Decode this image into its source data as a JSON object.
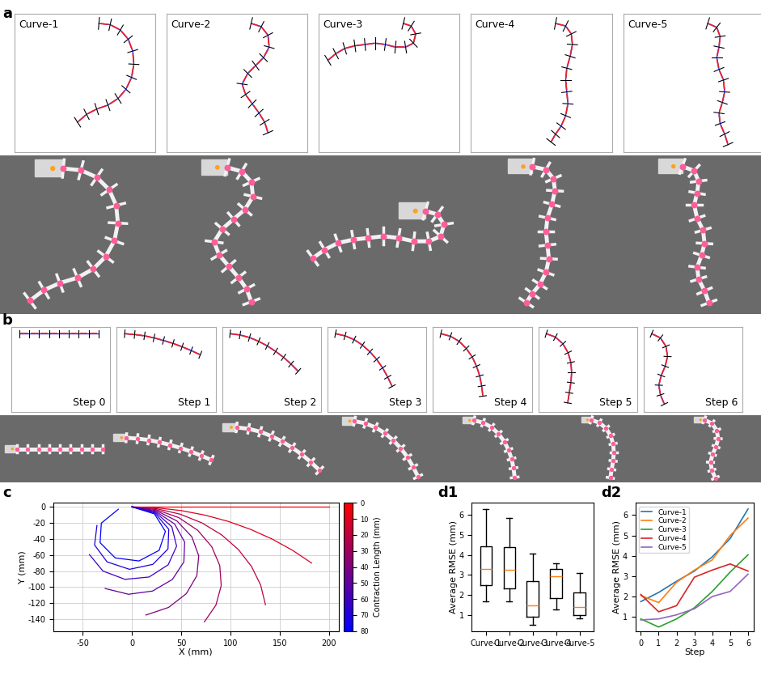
{
  "chart_data": [
    {
      "panel": "a",
      "type": "line",
      "xlim": [
        -150,
        100
      ],
      "ylim": [
        -195,
        15
      ],
      "tick_labels": false,
      "series": [
        {
          "name": "Curve-1",
          "x": [
            0,
            20,
            38,
            52,
            60,
            62,
            58,
            48,
            34,
            16,
            -4,
            -22,
            -38
          ],
          "y": [
            0,
            -2,
            -10,
            -24,
            -42,
            -62,
            -82,
            -100,
            -114,
            -124,
            -130,
            -138,
            -150
          ]
        },
        {
          "name": "Curve-2",
          "x": [
            0,
            18,
            30,
            32,
            22,
            8,
            -6,
            -16,
            -10,
            2,
            14,
            24,
            30
          ],
          "y": [
            0,
            -5,
            -18,
            -36,
            -52,
            -64,
            -76,
            -92,
            -108,
            -122,
            -136,
            -150,
            -166
          ]
        },
        {
          "name": "Curve-3",
          "x": [
            0,
            14,
            22,
            18,
            4,
            -14,
            -32,
            -50,
            -68,
            -86,
            -104,
            -120,
            -134
          ],
          "y": [
            0,
            -4,
            -16,
            -30,
            -36,
            -36,
            -32,
            -30,
            -32,
            -34,
            -38,
            -46,
            -56
          ]
        },
        {
          "name": "Curve-4",
          "x": [
            0,
            18,
            28,
            30,
            26,
            20,
            18,
            20,
            22,
            18,
            10,
            0,
            -8
          ],
          "y": [
            0,
            -4,
            -16,
            -32,
            -50,
            -68,
            -86,
            -104,
            -122,
            -140,
            -156,
            -168,
            -180
          ]
        },
        {
          "name": "Curve-5",
          "x": [
            0,
            16,
            22,
            20,
            16,
            20,
            28,
            30,
            26,
            20,
            22,
            30,
            36
          ],
          "y": [
            0,
            -6,
            -20,
            -36,
            -52,
            -70,
            -86,
            -104,
            -120,
            -136,
            -152,
            -168,
            -184
          ]
        }
      ]
    },
    {
      "panel": "b",
      "type": "line",
      "xlim": [
        -20,
        230
      ],
      "ylim": [
        -185,
        15
      ],
      "tick_labels": false,
      "series": [
        {
          "name": "Step 0",
          "x": [
            0,
            25,
            50,
            75,
            100,
            125,
            150,
            175,
            200
          ],
          "y": [
            0,
            0,
            0,
            0,
            0,
            0,
            0,
            0,
            0
          ]
        },
        {
          "name": "Step 1",
          "x": [
            0,
            25,
            50,
            74,
            98,
            122,
            145,
            168,
            191
          ],
          "y": [
            0,
            -2,
            -5,
            -10,
            -16,
            -23,
            -31,
            -40,
            -50
          ]
        },
        {
          "name": "Step 2",
          "x": [
            0,
            25,
            49,
            72,
            94,
            115,
            135,
            154,
            172
          ],
          "y": [
            0,
            -3,
            -9,
            -18,
            -29,
            -42,
            -56,
            -72,
            -89
          ]
        },
        {
          "name": "Step 3",
          "x": [
            0,
            24,
            47,
            68,
            87,
            104,
            119,
            132,
            143
          ],
          "y": [
            0,
            -5,
            -14,
            -27,
            -43,
            -61,
            -81,
            -103,
            -125
          ]
        },
        {
          "name": "Step 4",
          "x": [
            0,
            24,
            46,
            64,
            79,
            90,
            98,
            103,
            106
          ],
          "y": [
            0,
            -6,
            -18,
            -35,
            -55,
            -77,
            -100,
            -124,
            -148
          ]
        },
        {
          "name": "Step 5",
          "x": [
            0,
            23,
            42,
            55,
            62,
            64,
            62,
            58,
            54
          ],
          "y": [
            0,
            -8,
            -24,
            -45,
            -68,
            -92,
            -116,
            -140,
            -164
          ]
        },
        {
          "name": "Step 6",
          "x": [
            0,
            22,
            36,
            40,
            34,
            24,
            18,
            22,
            32
          ],
          "y": [
            0,
            -10,
            -30,
            -54,
            -77,
            -99,
            -122,
            -145,
            -167
          ]
        }
      ]
    },
    {
      "panel": "c",
      "type": "line",
      "xlabel": "X (mm)",
      "ylabel": "Y (mm)",
      "xlim": [
        -80,
        210
      ],
      "xticks": [
        -50,
        0,
        50,
        100,
        150,
        200
      ],
      "ylim": [
        -155,
        5
      ],
      "yticks": [
        -140,
        -120,
        -100,
        -80,
        -60,
        -40,
        -20,
        0
      ],
      "grid": true,
      "colorbar": {
        "label": "Contraction Length (mm)",
        "range": [
          0,
          80
        ],
        "ticks": [
          0,
          10,
          20,
          30,
          40,
          50,
          60,
          70,
          80
        ],
        "colors": [
          "#ff0000",
          "#0000ff"
        ]
      },
      "series": [
        {
          "contraction": 0,
          "x": [
            0,
            25,
            50,
            75,
            100,
            125,
            150,
            175,
            200
          ],
          "y": [
            0,
            0,
            0,
            0,
            0,
            0,
            0,
            0,
            0
          ]
        },
        {
          "contraction": 10,
          "x": [
            0,
            24.96,
            49.7,
            74.04,
            97.77,
            120.66,
            142.54,
            163.22,
            182.53
          ],
          "y": [
            0,
            -1.15,
            -4.56,
            -10.23,
            -18.11,
            -28.13,
            -40.21,
            -54.21,
            -70.08
          ]
        },
        {
          "contraction": 20,
          "x": [
            0,
            24.85,
            48.89,
            71.27,
            91.27,
            108.22,
            121.53,
            130.78,
            135.65
          ],
          "y": [
            0,
            -2.28,
            -9.06,
            -20.11,
            -35.04,
            -53.36,
            -74.47,
            -97.66,
            -122.15
          ]
        },
        {
          "contraction": 30,
          "x": [
            0,
            24.68,
            47.52,
            66.78,
            81.04,
            89.2,
            90.67,
            85.33,
            73.58
          ],
          "y": [
            0,
            -3.41,
            -13.41,
            -29.21,
            -49.66,
            -73.21,
            -98.09,
            -122.43,
            -143.41
          ]
        },
        {
          "contraction": 40,
          "x": [
            0,
            24.45,
            45.64,
            60.78,
            67.84,
            65.89,
            55.18,
            37.15,
            14.18
          ],
          "y": [
            0,
            -4.53,
            -17.52,
            -37.24,
            -61.08,
            -85.86,
            -108.3,
            -125.42,
            -134.93
          ]
        },
        {
          "contraction": 50,
          "x": [
            0,
            24.14,
            43.3,
            53.52,
            52.71,
            41.03,
            20.88,
            -3.57,
            -27.29
          ],
          "y": [
            0,
            -5.63,
            -21.35,
            -43.92,
            -68.69,
            -90.55,
            -104.99,
            -109.02,
            -101.83
          ]
        },
        {
          "contraction": 60,
          "x": [
            0,
            23.76,
            40.51,
            45.33,
            36.79,
            17.4,
            -7.11,
            -29.53,
            -43.25
          ],
          "y": [
            0,
            -6.7,
            -24.83,
            -49.04,
            -72.2,
            -87.48,
            -90.38,
            -80.04,
            -59.52
          ]
        },
        {
          "contraction": 70,
          "x": [
            0,
            23.32,
            37.37,
            36.57,
            21.23,
            -2.55,
            -25.31,
            -38.02,
            -35.61
          ],
          "y": [
            0,
            -7.75,
            -27.91,
            -52.47,
            -71.67,
            -77.88,
            -68.62,
            -47.58,
            -23.13
          ]
        },
        {
          "contraction": 80,
          "x": [
            0,
            22.82,
            33.92,
            27.6,
            7.09,
            -17.06,
            -32.44,
            -31.16,
            -13.87
          ],
          "y": [
            0,
            -8.76,
            -30.55,
            -54.16,
            -67.47,
            -63.65,
            -44.65,
            -20.24,
            -2.95
          ]
        }
      ]
    },
    {
      "panel": "d1",
      "type": "box",
      "ylabel": "Average RMSE (mm)",
      "categories": [
        "Curve-1",
        "Curve-2",
        "Curve-3",
        "Curve-4",
        "Curve-5"
      ],
      "ylim": [
        0.2,
        6.6
      ],
      "yticks": [
        1,
        2,
        3,
        4,
        5,
        6
      ],
      "stats": [
        {
          "whislo": 1.7,
          "q1": 2.5,
          "med": 3.3,
          "q3": 4.45,
          "whishi": 6.3
        },
        {
          "whislo": 1.7,
          "q1": 2.35,
          "med": 3.25,
          "q3": 4.4,
          "whishi": 5.85
        },
        {
          "whislo": 0.5,
          "q1": 0.9,
          "med": 1.5,
          "q3": 2.7,
          "whishi": 4.05
        },
        {
          "whislo": 1.3,
          "q1": 1.85,
          "med": 2.95,
          "q3": 3.3,
          "whishi": 3.6
        },
        {
          "whislo": 0.85,
          "q1": 1.0,
          "med": 1.4,
          "q3": 2.15,
          "whishi": 3.1
        }
      ]
    },
    {
      "panel": "d2",
      "type": "line",
      "xlabel": "Step",
      "ylabel": "Average RMSE (mm)",
      "x": [
        0,
        1,
        2,
        3,
        4,
        5,
        6
      ],
      "xlim": [
        -0.3,
        6.3
      ],
      "xticks": [
        0,
        1,
        2,
        3,
        4,
        5,
        6
      ],
      "ylim": [
        0.3,
        6.6
      ],
      "yticks": [
        1,
        2,
        3,
        4,
        5,
        6
      ],
      "legend": "upper left",
      "series": [
        {
          "name": "Curve-1",
          "color": "#1f77b4",
          "values": [
            1.75,
            2.2,
            2.75,
            3.25,
            3.95,
            4.85,
            6.3
          ]
        },
        {
          "name": "Curve-2",
          "color": "#ff7f0e",
          "values": [
            2.05,
            1.7,
            2.7,
            3.3,
            3.8,
            5.0,
            5.85
          ]
        },
        {
          "name": "Curve-3",
          "color": "#2ca02c",
          "values": [
            0.9,
            0.5,
            0.9,
            1.45,
            2.25,
            3.2,
            4.05
          ]
        },
        {
          "name": "Curve-4",
          "color": "#d62728",
          "values": [
            2.1,
            1.25,
            1.55,
            2.95,
            3.3,
            3.6,
            3.25
          ]
        },
        {
          "name": "Curve-5",
          "color": "#9467bd",
          "values": [
            0.85,
            0.9,
            1.1,
            1.4,
            2.0,
            2.25,
            3.1
          ]
        }
      ]
    }
  ]
}
